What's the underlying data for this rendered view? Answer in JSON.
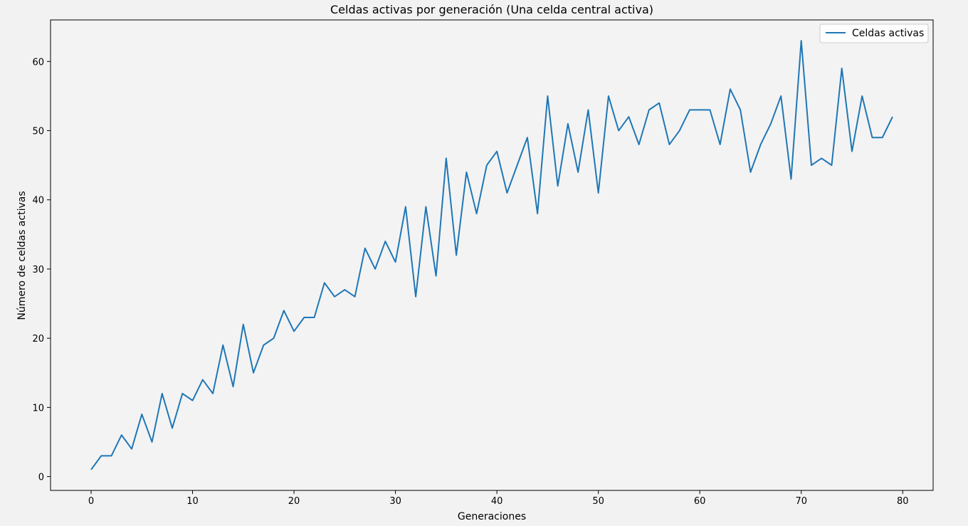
{
  "chart_data": {
    "type": "line",
    "title": "Celdas activas por generación (Una celda central activa)",
    "xlabel": "Generaciones",
    "ylabel": "Número de celdas activas",
    "xlim": [
      -4,
      83
    ],
    "ylim": [
      -2,
      66
    ],
    "xticks": [
      0,
      10,
      20,
      30,
      40,
      50,
      60,
      70,
      80
    ],
    "yticks": [
      0,
      10,
      20,
      30,
      40,
      50,
      60
    ],
    "grid": false,
    "legend_position": "upper right",
    "series": [
      {
        "name": "Celdas activas",
        "color": "#1f77b4",
        "x": [
          0,
          1,
          2,
          3,
          4,
          5,
          6,
          7,
          8,
          9,
          10,
          11,
          12,
          13,
          14,
          15,
          16,
          17,
          18,
          19,
          20,
          21,
          22,
          23,
          24,
          25,
          26,
          27,
          28,
          29,
          30,
          31,
          32,
          33,
          34,
          35,
          36,
          37,
          38,
          39,
          40,
          41,
          42,
          43,
          44,
          45,
          46,
          47,
          48,
          49,
          50,
          51,
          52,
          53,
          54,
          55,
          56,
          57,
          58,
          59,
          60,
          61,
          62,
          63,
          64,
          65,
          66,
          67,
          68,
          69,
          70,
          71,
          72,
          73,
          74,
          75,
          76,
          77,
          78,
          79
        ],
        "values": [
          1,
          3,
          3,
          6,
          4,
          9,
          5,
          12,
          7,
          12,
          11,
          14,
          12,
          19,
          13,
          22,
          15,
          19,
          20,
          24,
          21,
          23,
          23,
          28,
          26,
          27,
          26,
          33,
          30,
          34,
          31,
          39,
          26,
          39,
          29,
          46,
          32,
          44,
          38,
          45,
          47,
          41,
          45,
          49,
          38,
          55,
          42,
          51,
          44,
          53,
          41,
          55,
          50,
          52,
          48,
          53,
          54,
          48,
          50,
          53,
          53,
          53,
          48,
          56,
          53,
          44,
          48,
          51,
          55,
          43,
          63,
          45,
          46,
          45,
          59,
          47,
          55,
          49,
          49,
          52
        ]
      }
    ]
  }
}
